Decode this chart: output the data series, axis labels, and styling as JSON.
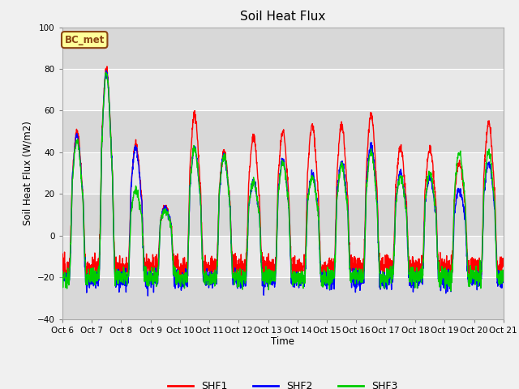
{
  "title": "Soil Heat Flux",
  "ylabel": "Soil Heat Flux (W/m2)",
  "xlabel": "Time",
  "ylim": [
    -40,
    100
  ],
  "background_color": "#f0f0f0",
  "plot_bg_color": "#d8d8d8",
  "band_light_color": "#e8e8e8",
  "band_dark_color": "#d8d8d8",
  "series_colors": [
    "#ff0000",
    "#0000ff",
    "#00cc00"
  ],
  "series_names": [
    "SHF1",
    "SHF2",
    "SHF3"
  ],
  "annotation_text": "BC_met",
  "annotation_bg": "#ffff99",
  "annotation_border": "#8b4513",
  "grid_color": "#ffffff",
  "total_days": 15,
  "n_points": 2160,
  "tick_labels": [
    "Oct 6",
    "Oct 7",
    "Oct 8",
    "Oct 9",
    "Oct 10",
    "Oct 11",
    "Oct 12",
    "Oct 13",
    "Oct 14",
    "Oct 15",
    "Oct 16",
    "Oct 17",
    "Oct 18",
    "Oct 19",
    "Oct 20",
    "Oct 21"
  ]
}
